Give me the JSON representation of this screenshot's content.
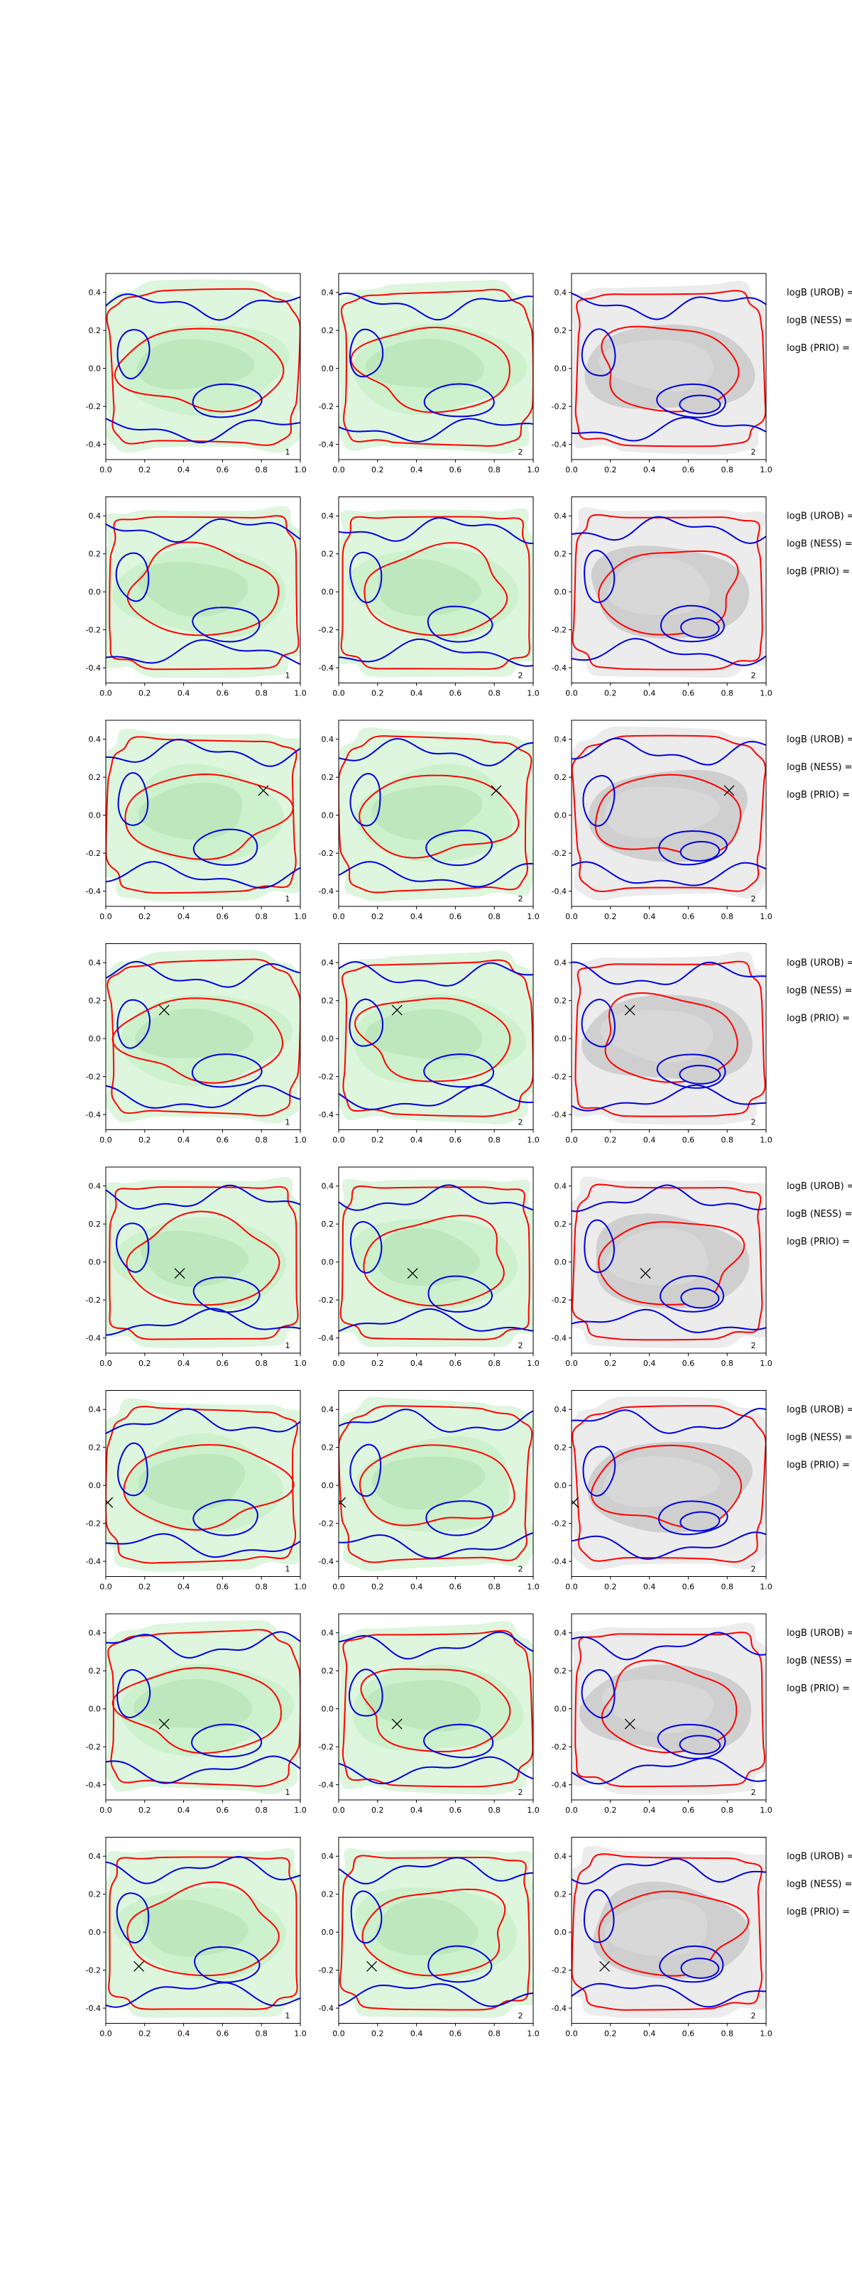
{
  "colors": {
    "green_fill": "#c8f0c8",
    "green_fill_light": "#ddf6dd",
    "grey_fill": "#c8c8c8",
    "grey_fill_light": "#ececec",
    "red_line": "#ff0000",
    "blue_line": "#0000dd",
    "marker": "#000000"
  },
  "axes": {
    "xlim": [
      0.0,
      1.0
    ],
    "ylim": [
      -0.48,
      0.5
    ],
    "xticks": [
      "0.0",
      "0.2",
      "0.4",
      "0.6",
      "0.8",
      "1.0"
    ],
    "yticks": [
      "-0.4",
      "-0.2",
      "0.0",
      "0.2",
      "0.4"
    ],
    "xtick_values": [
      0.0,
      0.2,
      0.4,
      0.6,
      0.8,
      1.0
    ],
    "ytick_values": [
      -0.4,
      -0.2,
      0.0,
      0.2,
      0.4
    ]
  },
  "column_labels": [
    "1",
    "2",
    "2"
  ],
  "logb_labels": [
    "logB (UROB) =",
    "logB (NESS) =",
    "logB (PRIO) ="
  ],
  "chart_data": [
    {
      "type": "contour",
      "row": 1,
      "marker": null
    },
    {
      "type": "contour",
      "row": 2,
      "marker": null
    },
    {
      "type": "contour",
      "row": 3,
      "marker": [
        0.81,
        0.13
      ]
    },
    {
      "type": "contour",
      "row": 4,
      "marker": [
        0.3,
        0.15
      ]
    },
    {
      "type": "contour",
      "row": 5,
      "marker": [
        0.38,
        -0.06
      ]
    },
    {
      "type": "contour",
      "row": 6,
      "marker": [
        0.01,
        -0.09
      ]
    },
    {
      "type": "contour",
      "row": 7,
      "marker": [
        0.3,
        -0.08
      ]
    },
    {
      "type": "contour",
      "row": 8,
      "marker": [
        0.17,
        -0.18
      ]
    }
  ]
}
